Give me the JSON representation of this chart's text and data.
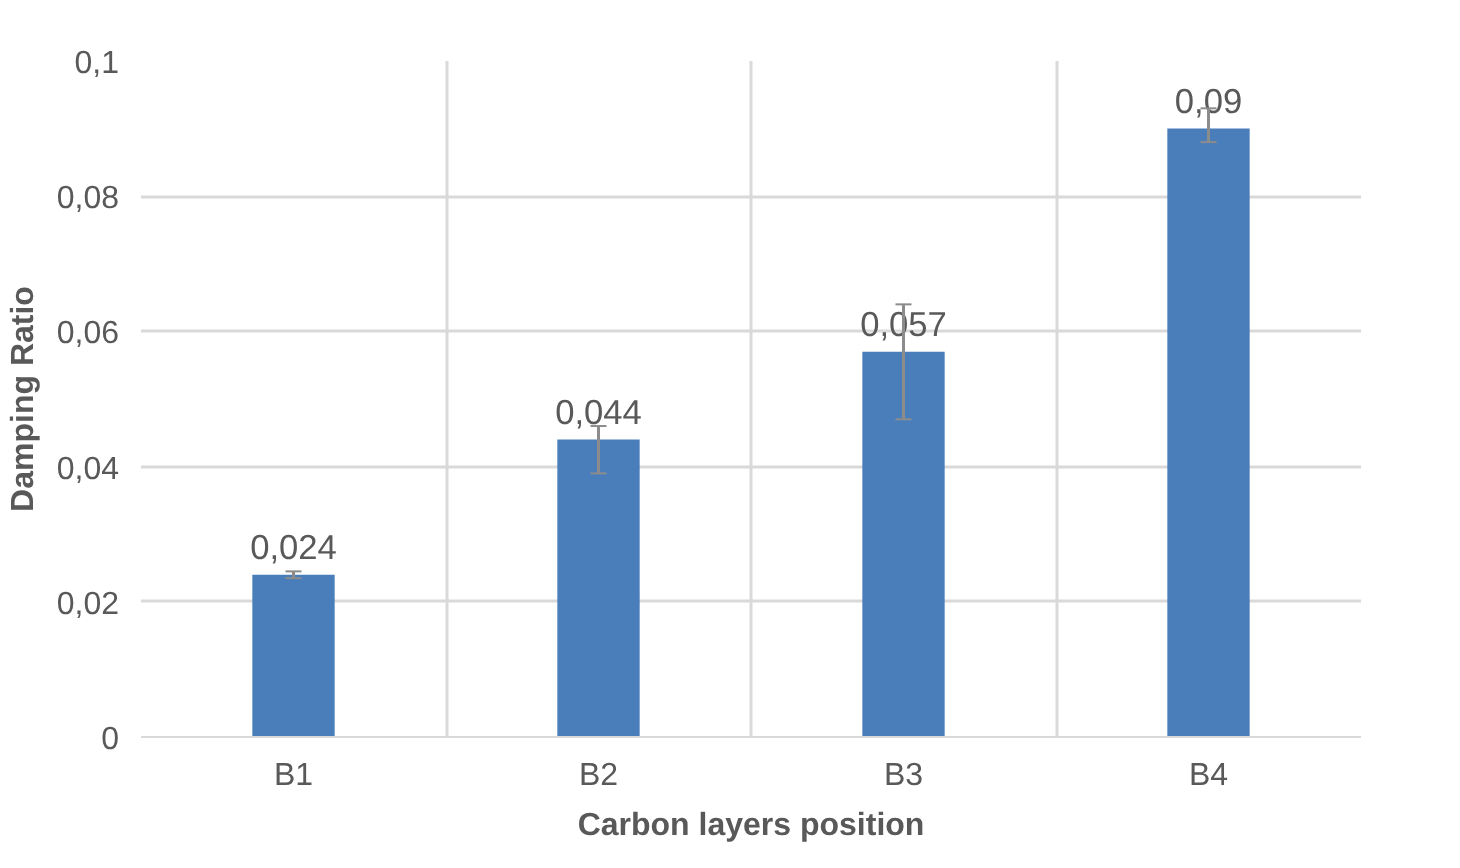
{
  "chart_data": {
    "type": "bar",
    "xlabel": "Carbon layers position",
    "ylabel": "Damping Ratio",
    "categories": [
      "B1",
      "B2",
      "B3",
      "B4"
    ],
    "values": [
      0.024,
      0.044,
      0.057,
      0.09
    ],
    "errors": [
      [
        0.0235,
        0.0245
      ],
      [
        0.039,
        0.046
      ],
      [
        0.047,
        0.064
      ],
      [
        0.088,
        0.093
      ]
    ],
    "value_labels": [
      "0,024",
      "0,044",
      "0,057",
      "0,09"
    ],
    "color": "#4a7ebb",
    "ylim": [
      0,
      0.1
    ],
    "yticks": [
      {
        "value": 0,
        "label": "0"
      },
      {
        "value": 0.02,
        "label": "0,02"
      },
      {
        "value": 0.04,
        "label": "0,04"
      },
      {
        "value": 0.06,
        "label": "0,06"
      },
      {
        "value": 0.08,
        "label": "0,08"
      },
      {
        "value": 0.1,
        "label": "0,1"
      }
    ],
    "grid": true
  }
}
